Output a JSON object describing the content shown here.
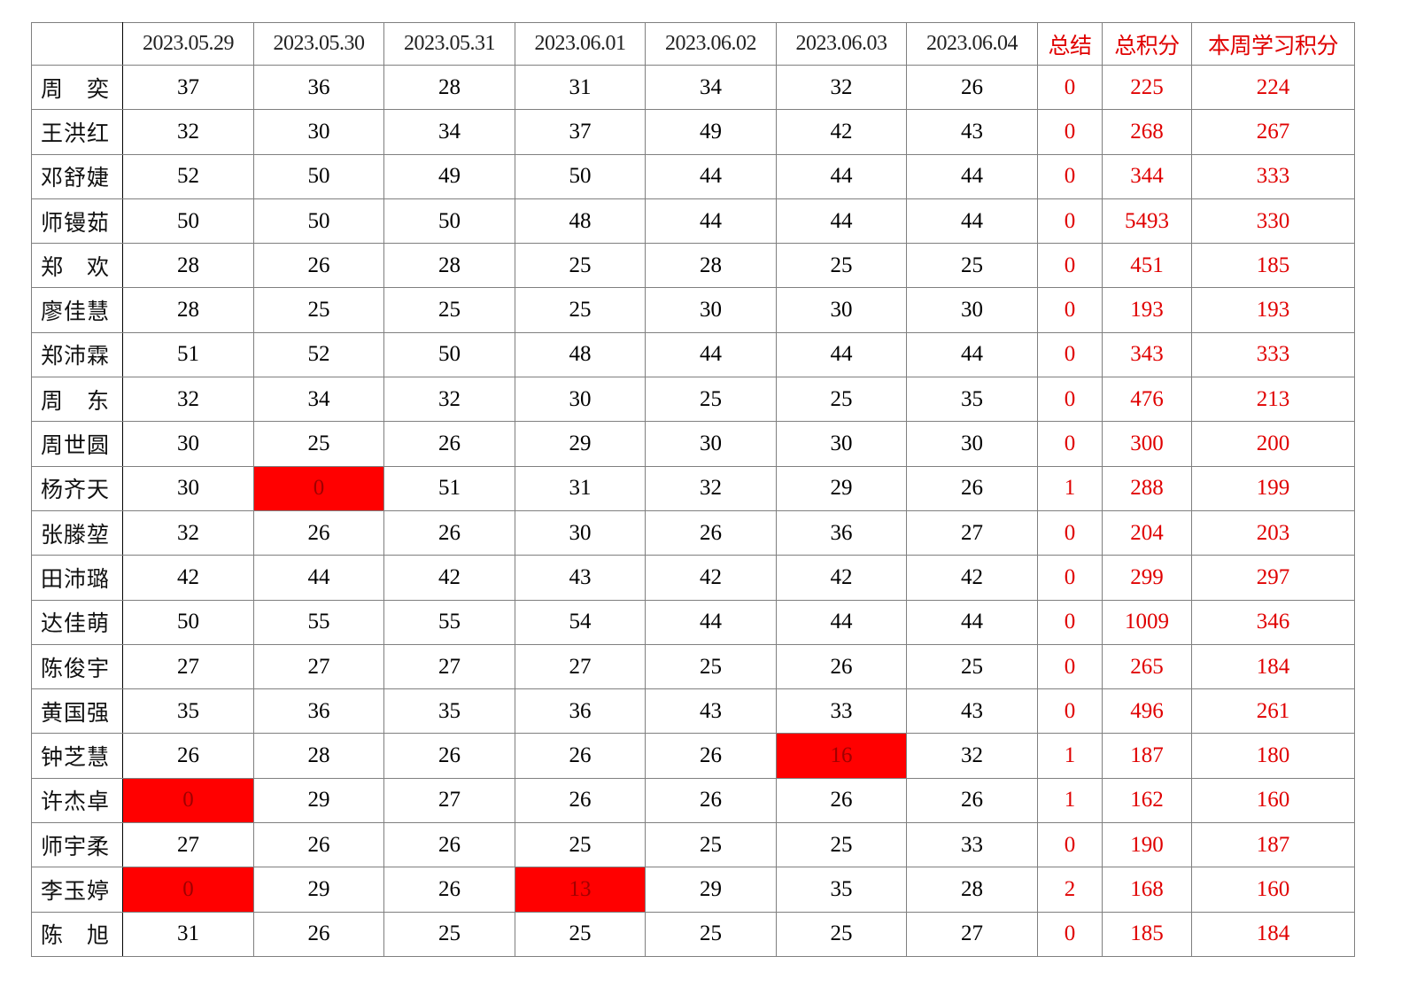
{
  "table": {
    "headers": [
      "",
      "2023.05.29",
      "2023.05.30",
      "2023.05.31",
      "2023.06.01",
      "2023.06.02",
      "2023.06.03",
      "2023.06.04",
      "总结",
      "总积分",
      "本周学习积分"
    ],
    "highlight_color": "#ff0000",
    "summary_text_color": "#e00000",
    "rows": [
      {
        "name": "周　奕",
        "scores": [
          "37",
          "36",
          "28",
          "31",
          "34",
          "32",
          "26"
        ],
        "summary": "0",
        "total": "225",
        "weekly": "224",
        "flagged": []
      },
      {
        "name": "王洪红",
        "scores": [
          "32",
          "30",
          "34",
          "37",
          "49",
          "42",
          "43"
        ],
        "summary": "0",
        "total": "268",
        "weekly": "267",
        "flagged": []
      },
      {
        "name": "邓舒婕",
        "scores": [
          "52",
          "50",
          "49",
          "50",
          "44",
          "44",
          "44"
        ],
        "summary": "0",
        "total": "344",
        "weekly": "333",
        "flagged": []
      },
      {
        "name": "师镘茹",
        "scores": [
          "50",
          "50",
          "50",
          "48",
          "44",
          "44",
          "44"
        ],
        "summary": "0",
        "total": "5493",
        "weekly": "330",
        "flagged": []
      },
      {
        "name": "郑　欢",
        "scores": [
          "28",
          "26",
          "28",
          "25",
          "28",
          "25",
          "25"
        ],
        "summary": "0",
        "total": "451",
        "weekly": "185",
        "flagged": []
      },
      {
        "name": "廖佳慧",
        "scores": [
          "28",
          "25",
          "25",
          "25",
          "30",
          "30",
          "30"
        ],
        "summary": "0",
        "total": "193",
        "weekly": "193",
        "flagged": []
      },
      {
        "name": "郑沛霖",
        "scores": [
          "51",
          "52",
          "50",
          "48",
          "44",
          "44",
          "44"
        ],
        "summary": "0",
        "total": "343",
        "weekly": "333",
        "flagged": []
      },
      {
        "name": "周　东",
        "scores": [
          "32",
          "34",
          "32",
          "30",
          "25",
          "25",
          "35"
        ],
        "summary": "0",
        "total": "476",
        "weekly": "213",
        "flagged": []
      },
      {
        "name": "周世圆",
        "scores": [
          "30",
          "25",
          "26",
          "29",
          "30",
          "30",
          "30"
        ],
        "summary": "0",
        "total": "300",
        "weekly": "200",
        "flagged": []
      },
      {
        "name": "杨齐天",
        "scores": [
          "30",
          "0",
          "51",
          "31",
          "32",
          "29",
          "26"
        ],
        "summary": "1",
        "total": "288",
        "weekly": "199",
        "flagged": [
          1
        ]
      },
      {
        "name": "张滕堃",
        "scores": [
          "32",
          "26",
          "26",
          "30",
          "26",
          "36",
          "27"
        ],
        "summary": "0",
        "total": "204",
        "weekly": "203",
        "flagged": []
      },
      {
        "name": "田沛璐",
        "scores": [
          "42",
          "44",
          "42",
          "43",
          "42",
          "42",
          "42"
        ],
        "summary": "0",
        "total": "299",
        "weekly": "297",
        "flagged": []
      },
      {
        "name": "达佳萌",
        "scores": [
          "50",
          "55",
          "55",
          "54",
          "44",
          "44",
          "44"
        ],
        "summary": "0",
        "total": "1009",
        "weekly": "346",
        "flagged": []
      },
      {
        "name": "陈俊宇",
        "scores": [
          "27",
          "27",
          "27",
          "27",
          "25",
          "26",
          "25"
        ],
        "summary": "0",
        "total": "265",
        "weekly": "184",
        "flagged": []
      },
      {
        "name": "黄国强",
        "scores": [
          "35",
          "36",
          "35",
          "36",
          "43",
          "33",
          "43"
        ],
        "summary": "0",
        "total": "496",
        "weekly": "261",
        "flagged": []
      },
      {
        "name": "钟芝慧",
        "scores": [
          "26",
          "28",
          "26",
          "26",
          "26",
          "16",
          "32"
        ],
        "summary": "1",
        "total": "187",
        "weekly": "180",
        "flagged": [
          5
        ]
      },
      {
        "name": "许杰卓",
        "scores": [
          "0",
          "29",
          "27",
          "26",
          "26",
          "26",
          "26"
        ],
        "summary": "1",
        "total": "162",
        "weekly": "160",
        "flagged": [
          0
        ]
      },
      {
        "name": "师宇柔",
        "scores": [
          "27",
          "26",
          "26",
          "25",
          "25",
          "25",
          "33"
        ],
        "summary": "0",
        "total": "190",
        "weekly": "187",
        "flagged": []
      },
      {
        "name": "李玉婷",
        "scores": [
          "0",
          "29",
          "26",
          "13",
          "29",
          "35",
          "28"
        ],
        "summary": "2",
        "total": "168",
        "weekly": "160",
        "flagged": [
          0,
          3
        ]
      },
      {
        "name": "陈　旭",
        "scores": [
          "31",
          "26",
          "25",
          "25",
          "25",
          "25",
          "27"
        ],
        "summary": "0",
        "total": "185",
        "weekly": "184",
        "flagged": []
      }
    ]
  }
}
